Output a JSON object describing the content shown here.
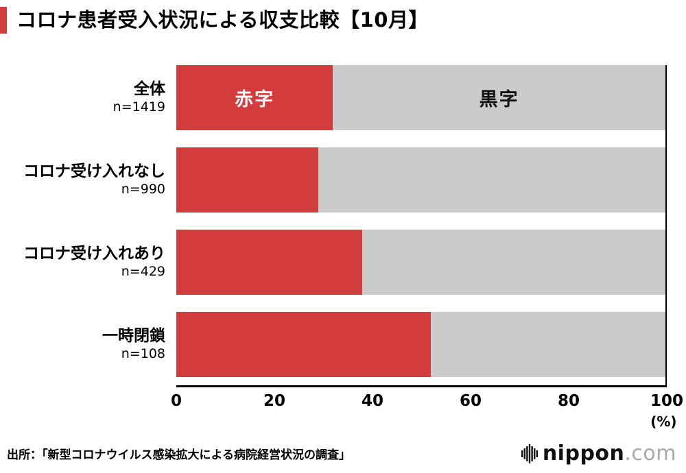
{
  "chart_data": {
    "type": "bar",
    "orientation": "horizontal",
    "stacked": true,
    "title": "コロナ患者受入状況による収支比較【10月】",
    "categories": [
      "全体",
      "コロナ受け入れなし",
      "コロナ受け入れあり",
      "一時閉鎖"
    ],
    "n_labels": [
      "n=1419",
      "n=990",
      "n=429",
      "n=108"
    ],
    "series": [
      {
        "name": "赤字",
        "color": "#d23c3c",
        "values": [
          32,
          29,
          38,
          52
        ]
      },
      {
        "name": "黒字",
        "color": "#cbcbcb",
        "values": [
          68,
          71,
          62,
          48
        ]
      }
    ],
    "xlim": [
      0,
      100
    ],
    "x_ticks": [
      "0",
      "20",
      "40",
      "60",
      "80",
      "100"
    ],
    "x_unit": "(%)",
    "grid": false,
    "legend_position": "labels inside first bar"
  },
  "footer": {
    "source": "出所：「新型コロナウイルス感染拡大による病院経営状況の調査」",
    "logo_name": "nippon",
    "logo_suffix": ".com"
  },
  "colors": {
    "deficit_red": "#d23c3c",
    "surplus_gray": "#cbcbcb",
    "title_accent_red": "#d23c3c",
    "logo_gray": "#a9a9a9",
    "axis_black": "#000000"
  }
}
